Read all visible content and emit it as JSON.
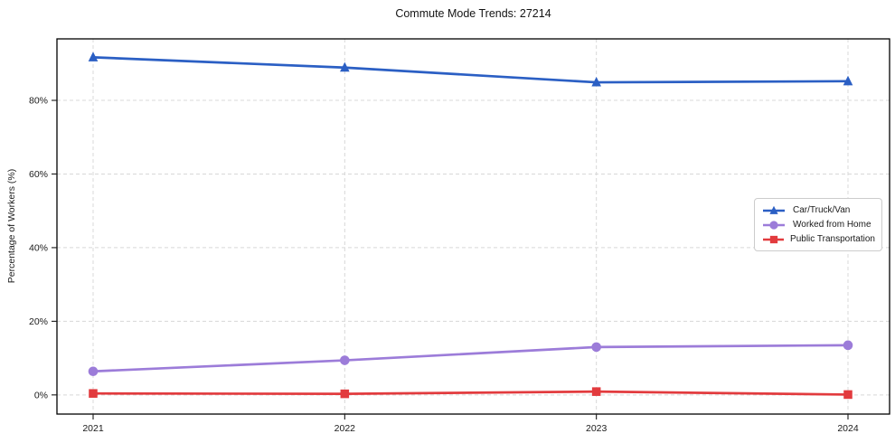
{
  "chart_data": {
    "type": "line",
    "title": "Commute Mode Trends: 27214",
    "xlabel": "",
    "ylabel": "Percentage of Workers (%)",
    "x": [
      "2021",
      "2022",
      "2023",
      "2024"
    ],
    "series": [
      {
        "name": "Car/Truck/Van",
        "values": [
          91.7,
          88.9,
          84.9,
          85.2
        ],
        "color": "#2b5fc4",
        "marker": "triangle"
      },
      {
        "name": "Worked from Home",
        "values": [
          6.4,
          9.4,
          13.0,
          13.5
        ],
        "color": "#9c7cd9",
        "marker": "circle"
      },
      {
        "name": "Public Transportation",
        "values": [
          0.4,
          0.3,
          0.9,
          0.1
        ],
        "color": "#e23b3e",
        "marker": "square"
      }
    ],
    "yticks": {
      "values": [
        0,
        20,
        40,
        60,
        80
      ],
      "labels": [
        "0%",
        "20%",
        "40%",
        "60%",
        "80%"
      ]
    },
    "ylim": [
      -5.2,
      96.7
    ],
    "grid": "dashed-both-axes",
    "legend_position": "center-right",
    "colors": {
      "text": "#1a1a1a",
      "grid": "#d8d8d8",
      "axis_frame": "#000000",
      "background": "#ffffff"
    }
  }
}
